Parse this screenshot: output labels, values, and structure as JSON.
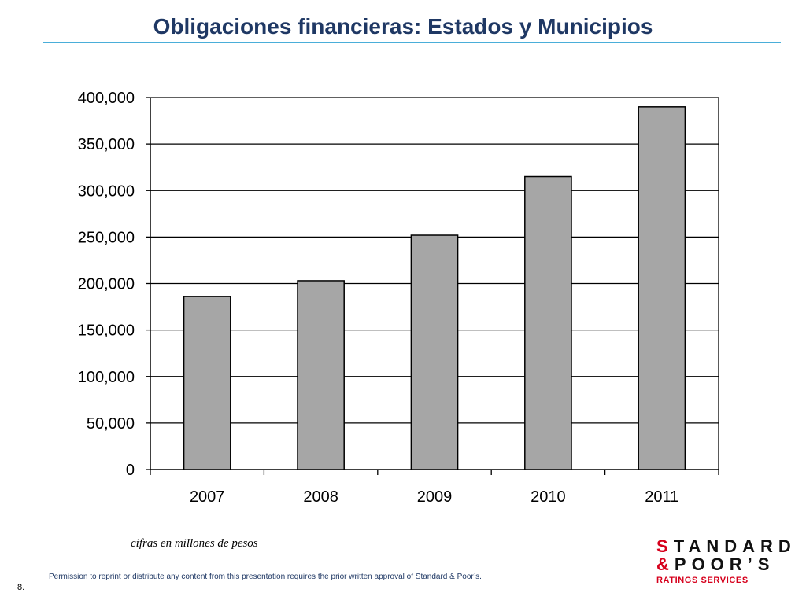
{
  "page": {
    "title": "Obligaciones financieras: Estados y Municipios",
    "note": "cifras en millones de pesos",
    "permission": "Permission to reprint or distribute any content from this presentation requires the prior written approval of Standard & Poor’s.",
    "page_number": "8."
  },
  "logo": {
    "line1_accent": "S",
    "line1_rest": "TANDARD",
    "line2_accent": "&",
    "line2_rest": "POOR’S",
    "subline": "RATINGS SERVICES"
  },
  "colors": {
    "bar_fill": "#a6a6a6",
    "bar_stroke": "#000000",
    "title": "#1f3864",
    "title_rule": "#4aaed9",
    "logo_red": "#d6001c"
  },
  "chart_data": {
    "type": "bar",
    "categories": [
      "2007",
      "2008",
      "2009",
      "2010",
      "2011"
    ],
    "values": [
      186000,
      203000,
      252000,
      315000,
      390000
    ],
    "ylim": [
      0,
      400000
    ],
    "yticks": [
      0,
      50000,
      100000,
      150000,
      200000,
      250000,
      300000,
      350000,
      400000
    ],
    "ytick_labels": [
      "0",
      "50,000",
      "100,000",
      "150,000",
      "200,000",
      "250,000",
      "300,000",
      "350,000",
      "400,000"
    ],
    "grid": true,
    "legend": "none"
  }
}
